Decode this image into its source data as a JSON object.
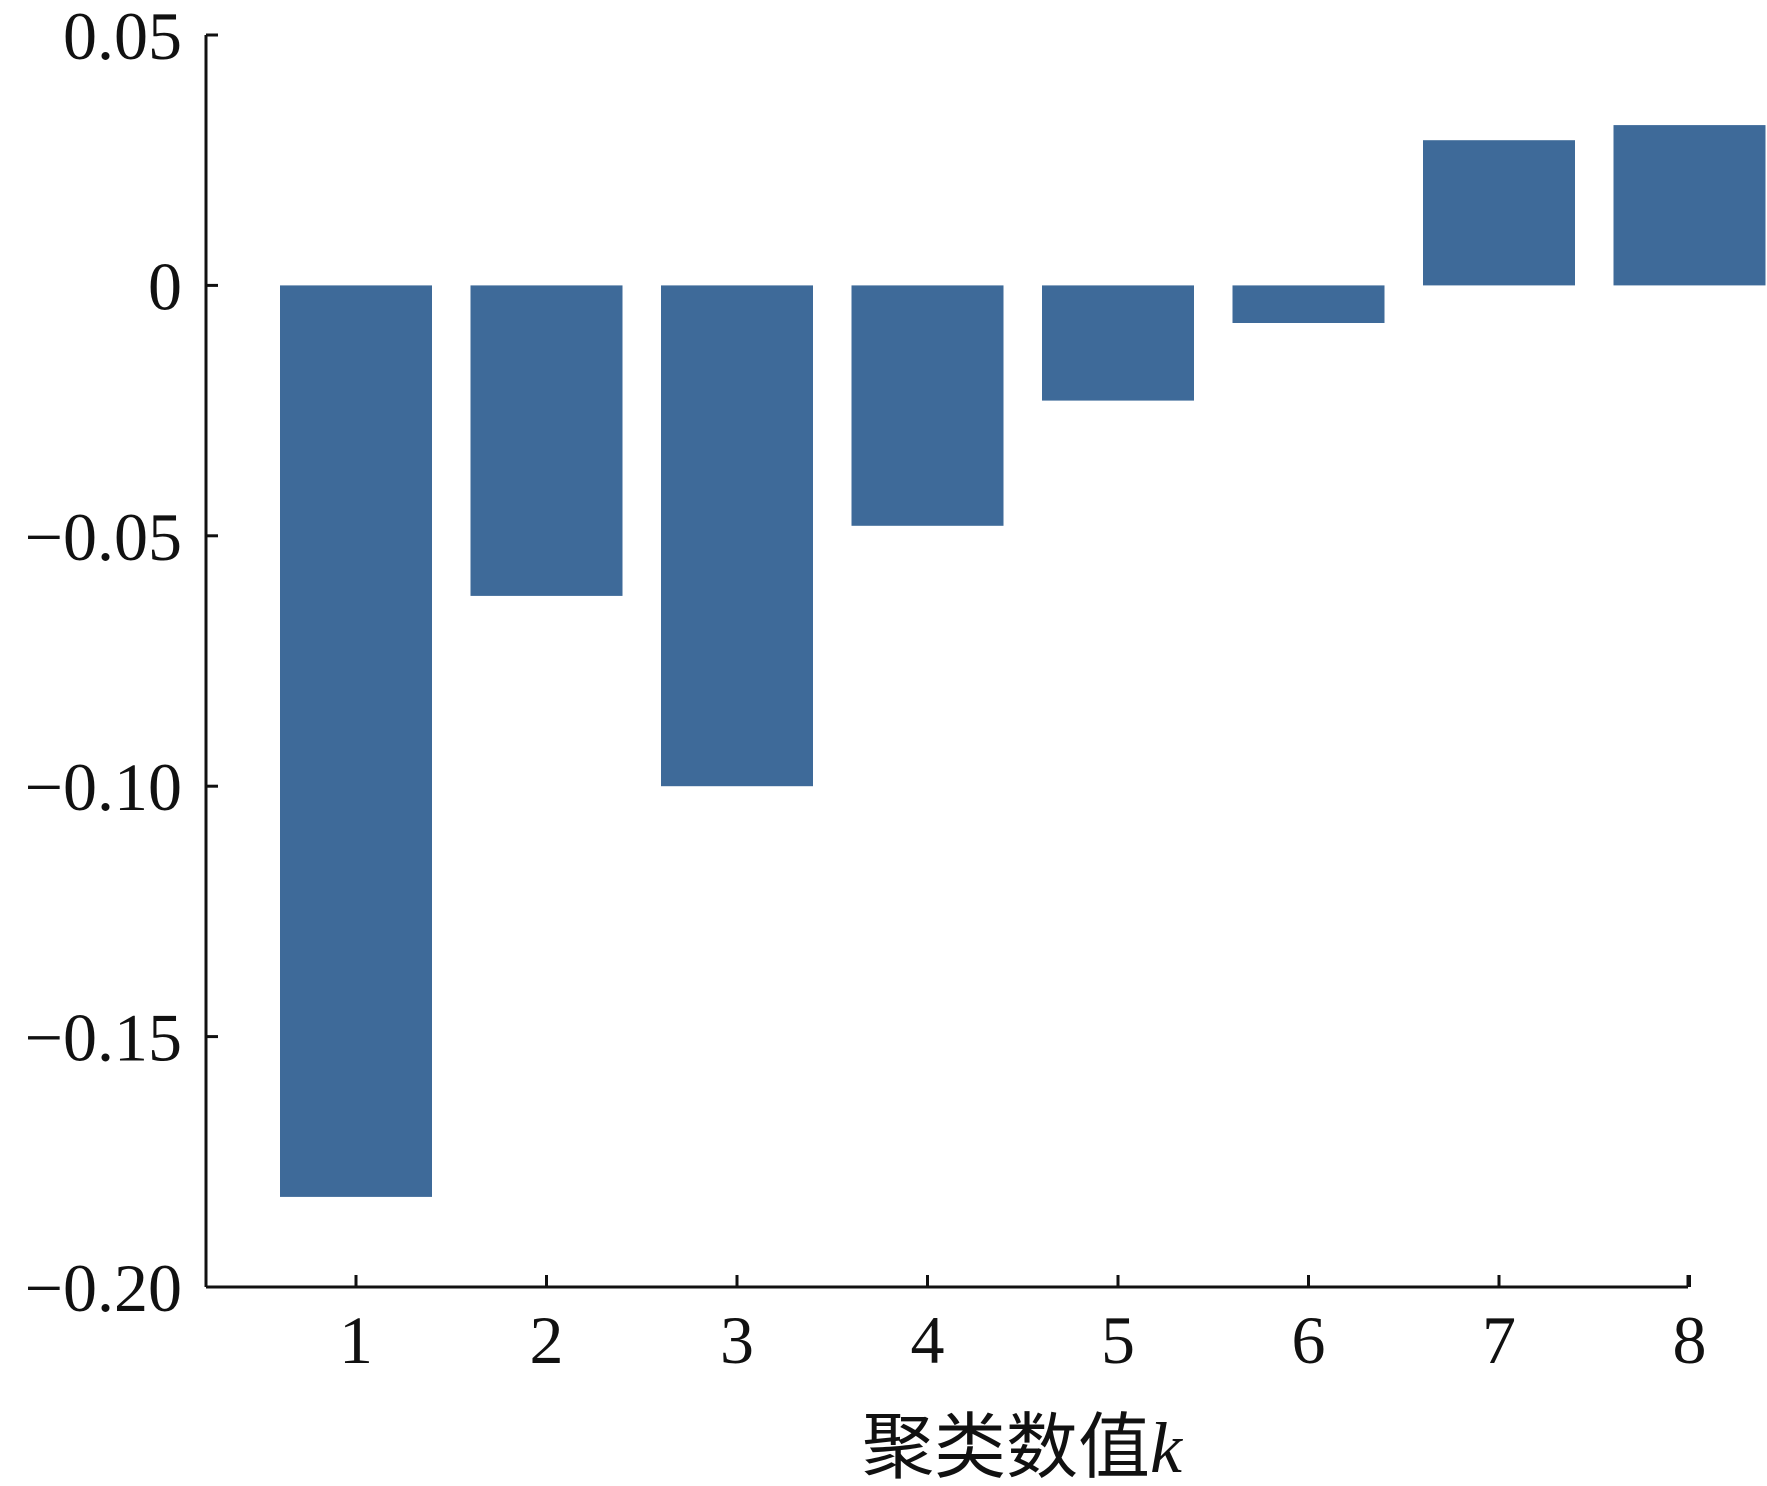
{
  "chart_data": {
    "type": "bar",
    "categories": [
      "1",
      "2",
      "3",
      "4",
      "5",
      "6",
      "7",
      "8"
    ],
    "values": [
      -0.182,
      -0.062,
      -0.1,
      -0.048,
      -0.023,
      -0.0075,
      0.029,
      0.032
    ],
    "xlabel_main": "聚类数值",
    "xlabel_var": "k",
    "ylabel": "",
    "ylim": [
      -0.2,
      0.05
    ],
    "yticks": [
      0.05,
      0,
      -0.05,
      -0.1,
      -0.15,
      -0.2
    ],
    "ytick_labels": [
      "0.05",
      "0",
      "−0.05",
      "−0.10",
      "−0.15",
      "−0.20"
    ],
    "grid": false,
    "bar_color": "#3e6a99",
    "axis_color": "#111111"
  }
}
